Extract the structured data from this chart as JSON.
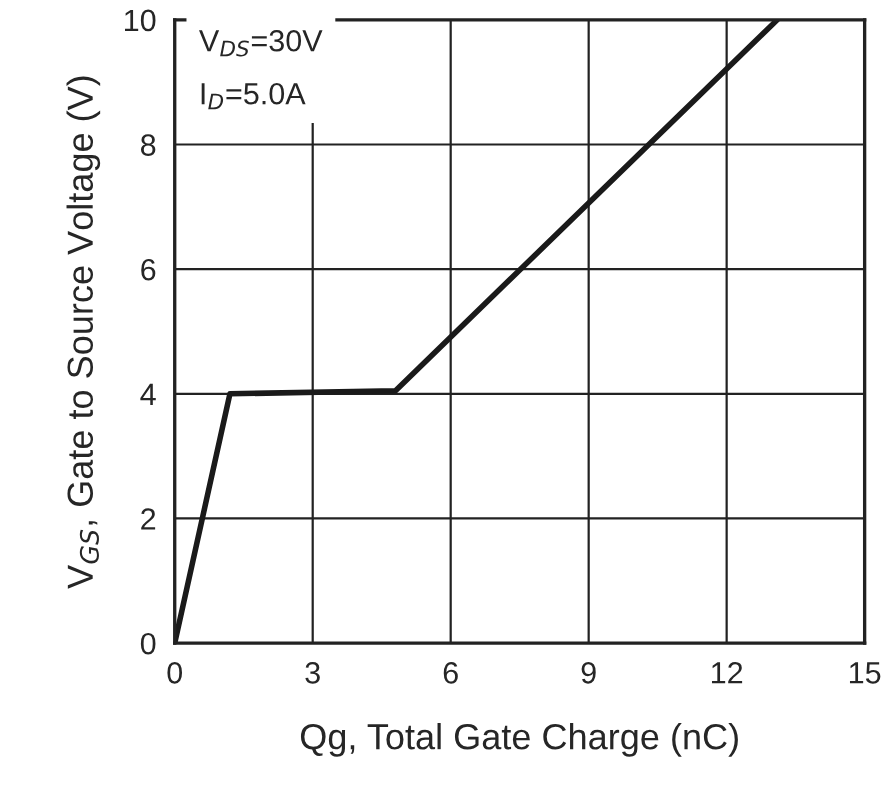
{
  "chart_data": {
    "type": "line",
    "xlabel": "Qg, Total Gate Charge (nC)",
    "ylabel": "V$_{GS}$, Gate to Source Voltage (V)",
    "annotations": [
      "V$_{DS}$=30V",
      "I$_{D}$=5.0A"
    ],
    "series": [
      {
        "color": "#1a1a1a",
        "x": [
          0,
          1.2,
          4.8,
          13.1
        ],
        "values": [
          0,
          4.0,
          4.05,
          10
        ]
      }
    ],
    "xlim": [
      0,
      15
    ],
    "xticks": [
      0,
      3,
      6,
      9,
      12,
      15
    ],
    "ylim": [
      0,
      10
    ],
    "yticks": [
      0,
      2,
      4,
      6,
      8,
      10
    ],
    "grid": true,
    "marker": "none",
    "line_style": "solid"
  }
}
